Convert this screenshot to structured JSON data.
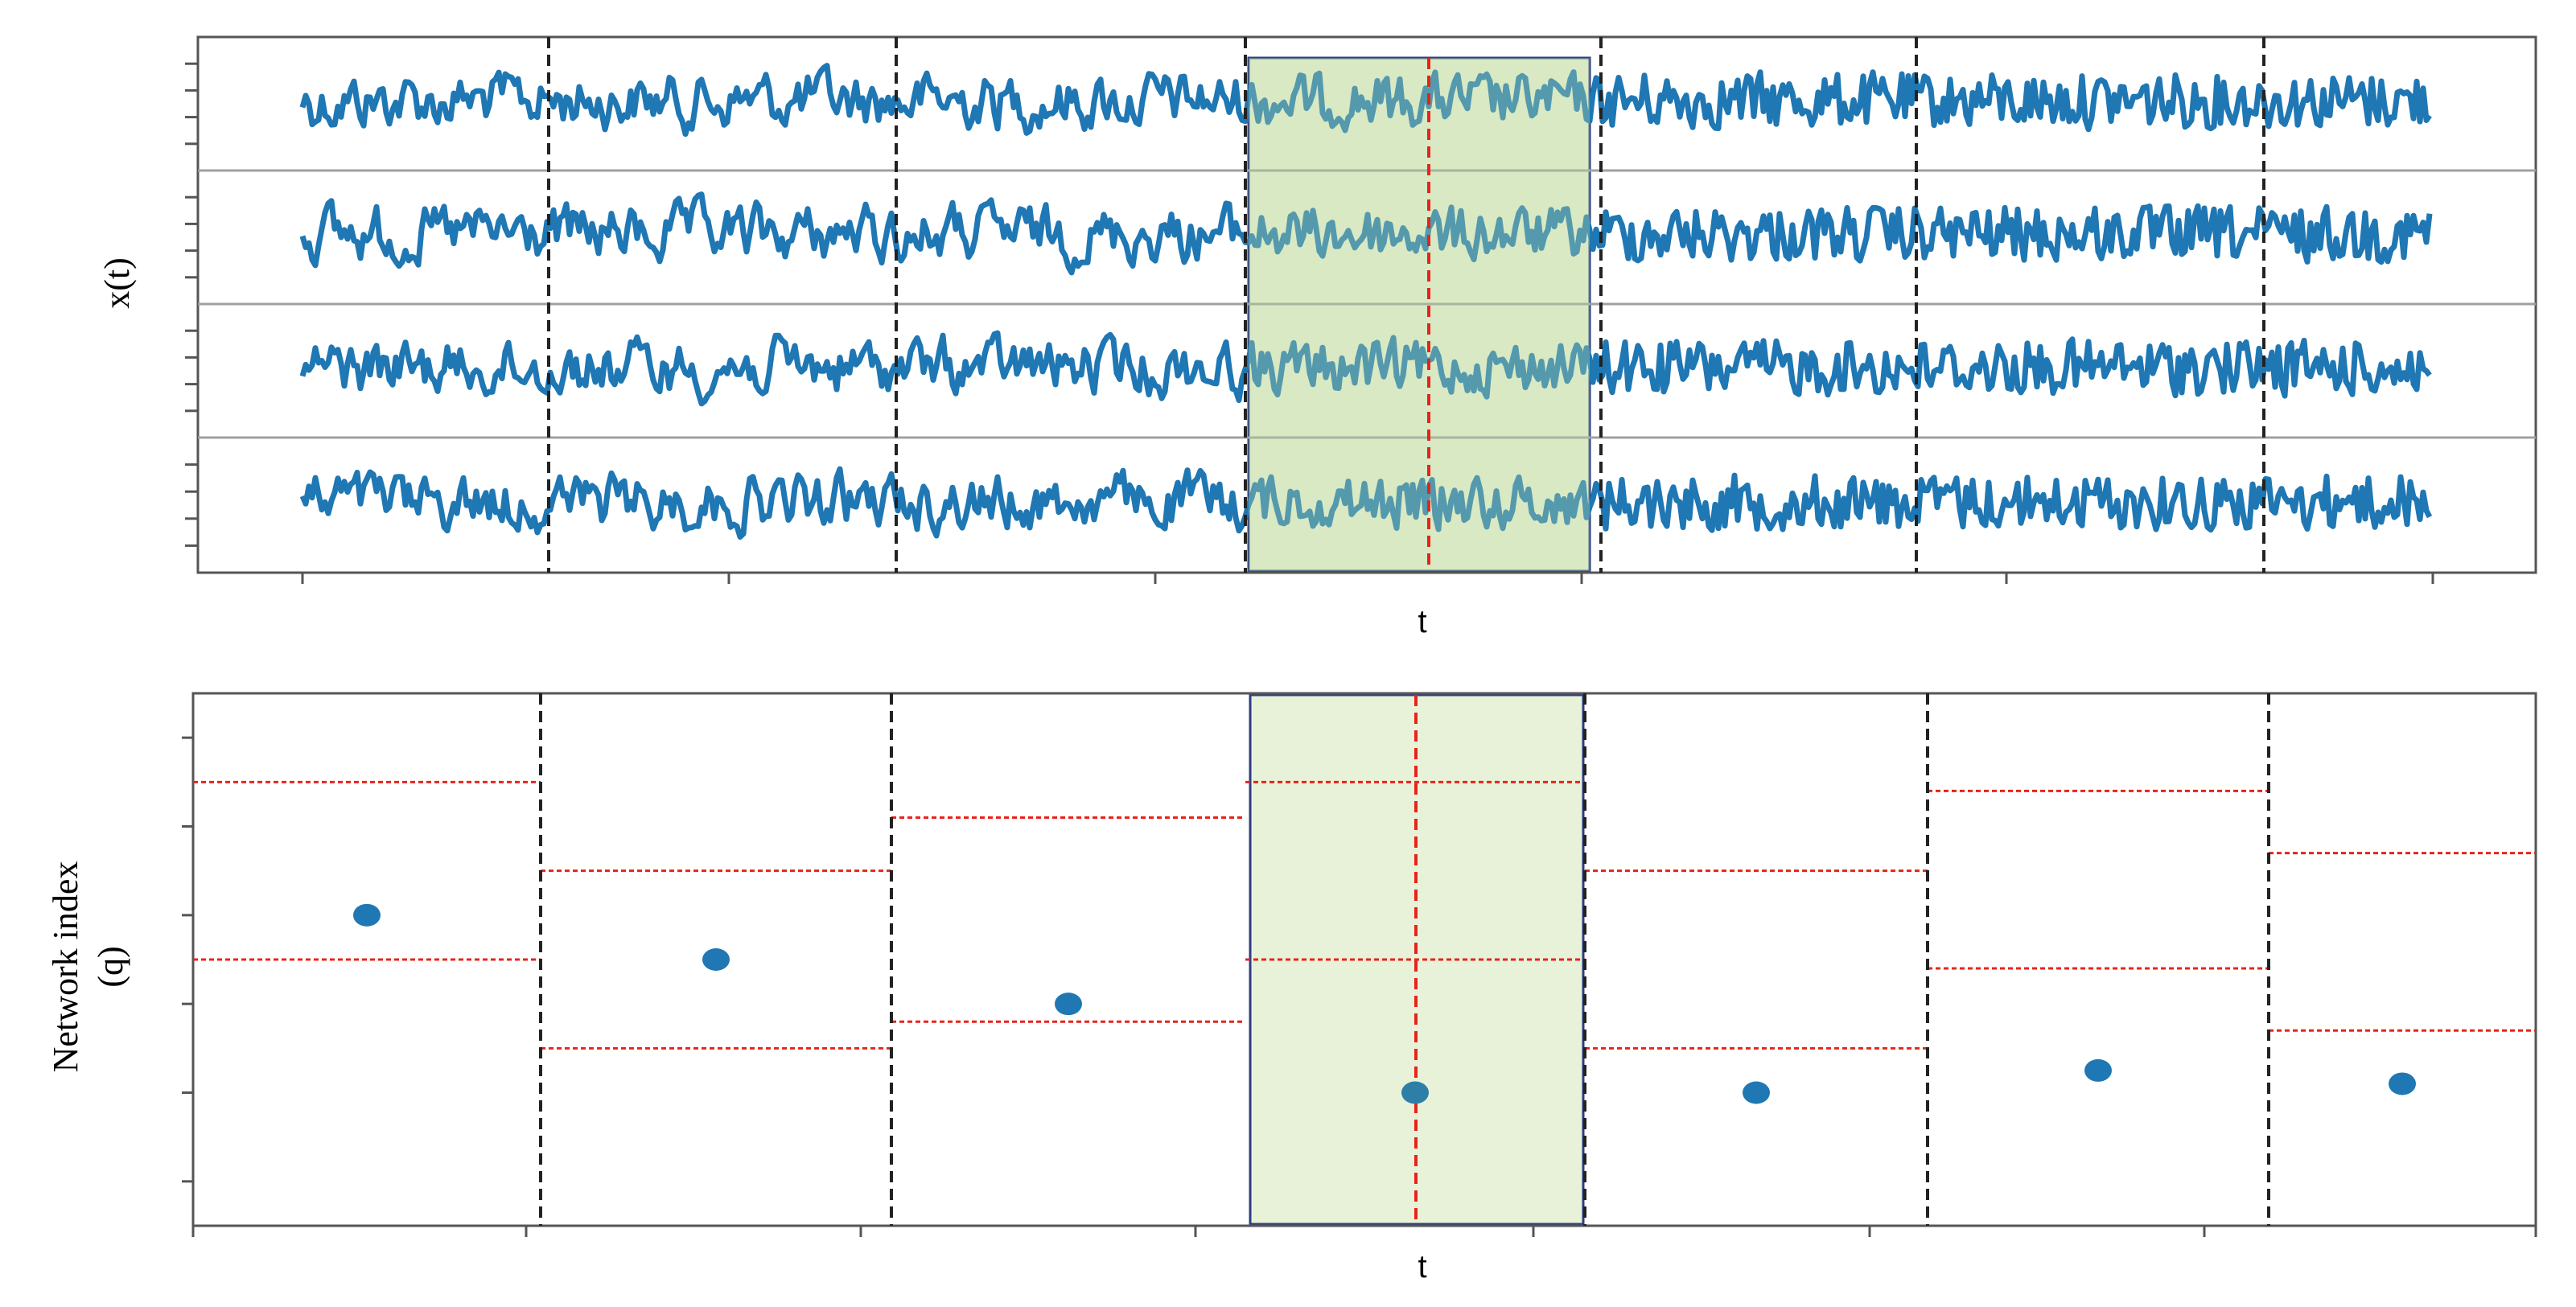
{
  "chart_data": [
    {
      "type": "line",
      "xlabel": "t",
      "ylabel": "x(t)",
      "series_count": 4,
      "segments": 7,
      "highlighted_segment": 4,
      "regime_changes": [
        {
          "after_segment": 1,
          "style": "black-dashed"
        },
        {
          "after_segment": 2,
          "style": "black-dashed"
        },
        {
          "after_segment": 3,
          "style": "black-dashed"
        },
        {
          "within_segment": 4,
          "style": "red-dashed"
        },
        {
          "after_segment": 4,
          "style": "black-dashed"
        },
        {
          "after_segment": 5,
          "style": "black-dashed"
        },
        {
          "after_segment": 6,
          "style": "black-dashed"
        }
      ],
      "grid": false,
      "legend": "none"
    },
    {
      "type": "scatter",
      "xlabel": "t",
      "ylabel_lines": [
        "Network index",
        "(q)"
      ],
      "ylim": [
        0,
        6
      ],
      "segments": [
        {
          "index": 1,
          "q": 3.5,
          "bounds": [
            3.0,
            5.0
          ]
        },
        {
          "index": 2,
          "q": 3.0,
          "bounds": [
            2.0,
            4.0
          ]
        },
        {
          "index": 3,
          "q": 2.5,
          "bounds": [
            2.3,
            4.6
          ]
        },
        {
          "index": 4,
          "q": 1.5,
          "bounds": [
            3.0,
            5.0
          ],
          "highlighted": true
        },
        {
          "index": 5,
          "q": 1.5,
          "bounds": [
            2.0,
            4.0
          ]
        },
        {
          "index": 6,
          "q": 1.75,
          "bounds": [
            2.9,
            4.9
          ]
        },
        {
          "index": 7,
          "q": 1.6,
          "bounds": [
            2.2,
            4.2
          ]
        }
      ],
      "grid": false,
      "legend": "none"
    }
  ],
  "style": {
    "series_color": "#1f77b4",
    "boundary_color": "#222222",
    "change_point_color": "#e8231b",
    "highlight_fill": "#e8f2d8",
    "highlight_stroke": "#2c3e80",
    "separator_color": "#a0a0a0"
  }
}
